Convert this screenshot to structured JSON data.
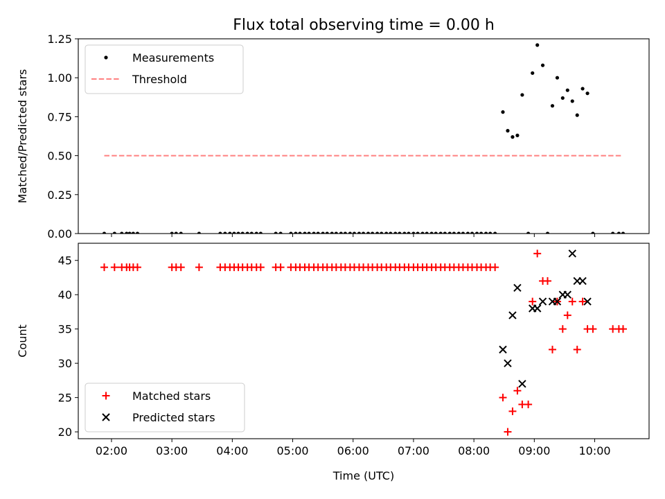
{
  "chart_data": {
    "title": "Flux total observing time = 0.00 h",
    "xlabel": "Time (UTC)",
    "x_tick_labels": [
      "02:00",
      "03:00",
      "04:00",
      "05:00",
      "06:00",
      "07:00",
      "08:00",
      "09:00",
      "10:00"
    ],
    "x_tick_values": [
      2,
      3,
      4,
      5,
      6,
      7,
      8,
      9,
      10
    ],
    "xlim": [
      1.45,
      10.9
    ],
    "panels": [
      {
        "type": "scatter",
        "ylabel": "Matched/Predicted stars",
        "ylim": [
          0,
          1.25
        ],
        "y_ticks": [
          "0.00",
          "0.25",
          "0.50",
          "0.75",
          "1.00",
          "1.25"
        ],
        "y_tick_values": [
          0,
          0.25,
          0.5,
          0.75,
          1.0,
          1.25
        ],
        "legend_position": "upper-left",
        "series": [
          {
            "name": "Measurements",
            "color": "#000000",
            "marker": "dot",
            "points": [
              [
                1.88,
                0
              ],
              [
                2.05,
                0
              ],
              [
                2.17,
                0
              ],
              [
                2.25,
                0
              ],
              [
                2.3,
                0
              ],
              [
                2.36,
                0
              ],
              [
                2.43,
                0
              ],
              [
                3.0,
                0
              ],
              [
                3.07,
                0
              ],
              [
                3.15,
                0
              ],
              [
                3.45,
                0
              ],
              [
                3.8,
                0
              ],
              [
                3.88,
                0
              ],
              [
                3.96,
                0
              ],
              [
                4.03,
                0
              ],
              [
                4.1,
                0
              ],
              [
                4.17,
                0
              ],
              [
                4.25,
                0
              ],
              [
                4.32,
                0
              ],
              [
                4.4,
                0
              ],
              [
                4.47,
                0
              ],
              [
                4.72,
                0
              ],
              [
                4.8,
                0
              ],
              [
                4.97,
                0
              ],
              [
                5.05,
                0
              ],
              [
                5.12,
                0
              ],
              [
                5.2,
                0
              ],
              [
                5.27,
                0
              ],
              [
                5.35,
                0
              ],
              [
                5.42,
                0
              ],
              [
                5.5,
                0
              ],
              [
                5.57,
                0
              ],
              [
                5.65,
                0
              ],
              [
                5.72,
                0
              ],
              [
                5.8,
                0
              ],
              [
                5.87,
                0
              ],
              [
                5.95,
                0
              ],
              [
                6.02,
                0
              ],
              [
                6.1,
                0
              ],
              [
                6.17,
                0
              ],
              [
                6.25,
                0
              ],
              [
                6.32,
                0
              ],
              [
                6.4,
                0
              ],
              [
                6.47,
                0
              ],
              [
                6.55,
                0
              ],
              [
                6.62,
                0
              ],
              [
                6.7,
                0
              ],
              [
                6.77,
                0
              ],
              [
                6.85,
                0
              ],
              [
                6.92,
                0
              ],
              [
                7.0,
                0
              ],
              [
                7.07,
                0
              ],
              [
                7.15,
                0
              ],
              [
                7.22,
                0
              ],
              [
                7.3,
                0
              ],
              [
                7.37,
                0
              ],
              [
                7.45,
                0
              ],
              [
                7.52,
                0
              ],
              [
                7.6,
                0
              ],
              [
                7.67,
                0
              ],
              [
                7.75,
                0
              ],
              [
                7.82,
                0
              ],
              [
                7.9,
                0
              ],
              [
                7.97,
                0
              ],
              [
                8.05,
                0
              ],
              [
                8.12,
                0
              ],
              [
                8.2,
                0
              ],
              [
                8.27,
                0
              ],
              [
                8.35,
                0
              ],
              [
                8.48,
                0.78
              ],
              [
                8.56,
                0.66
              ],
              [
                8.64,
                0.62
              ],
              [
                8.72,
                0.63
              ],
              [
                8.8,
                0.89
              ],
              [
                8.9,
                0
              ],
              [
                8.97,
                1.03
              ],
              [
                9.05,
                1.21
              ],
              [
                9.14,
                1.08
              ],
              [
                9.22,
                0
              ],
              [
                9.3,
                0.82
              ],
              [
                9.38,
                1.0
              ],
              [
                9.47,
                0.87
              ],
              [
                9.55,
                0.92
              ],
              [
                9.63,
                0.85
              ],
              [
                9.71,
                0.76
              ],
              [
                9.8,
                0.93
              ],
              [
                9.88,
                0.9
              ],
              [
                9.97,
                0
              ],
              [
                10.3,
                0
              ],
              [
                10.4,
                0
              ],
              [
                10.47,
                0
              ]
            ]
          },
          {
            "name": "Threshold",
            "color": "#ff8080",
            "line_style": "dashed",
            "points": [
              [
                1.88,
                0.5
              ],
              [
                10.47,
                0.5
              ]
            ]
          }
        ]
      },
      {
        "type": "scatter",
        "ylabel": "Count",
        "ylim": [
          19,
          47.5
        ],
        "y_ticks": [
          "20",
          "25",
          "30",
          "35",
          "40",
          "45"
        ],
        "y_tick_values": [
          20,
          25,
          30,
          35,
          40,
          45
        ],
        "legend_position": "lower-left",
        "series": [
          {
            "name": "Matched stars",
            "color": "#ff0000",
            "marker": "plus",
            "points": [
              [
                1.88,
                44
              ],
              [
                2.05,
                44
              ],
              [
                2.17,
                44
              ],
              [
                2.25,
                44
              ],
              [
                2.3,
                44
              ],
              [
                2.36,
                44
              ],
              [
                2.43,
                44
              ],
              [
                3.0,
                44
              ],
              [
                3.07,
                44
              ],
              [
                3.15,
                44
              ],
              [
                3.45,
                44
              ],
              [
                3.8,
                44
              ],
              [
                3.88,
                44
              ],
              [
                3.96,
                44
              ],
              [
                4.03,
                44
              ],
              [
                4.1,
                44
              ],
              [
                4.17,
                44
              ],
              [
                4.25,
                44
              ],
              [
                4.32,
                44
              ],
              [
                4.4,
                44
              ],
              [
                4.47,
                44
              ],
              [
                4.72,
                44
              ],
              [
                4.8,
                44
              ],
              [
                4.97,
                44
              ],
              [
                5.05,
                44
              ],
              [
                5.12,
                44
              ],
              [
                5.2,
                44
              ],
              [
                5.27,
                44
              ],
              [
                5.35,
                44
              ],
              [
                5.42,
                44
              ],
              [
                5.5,
                44
              ],
              [
                5.57,
                44
              ],
              [
                5.65,
                44
              ],
              [
                5.72,
                44
              ],
              [
                5.8,
                44
              ],
              [
                5.87,
                44
              ],
              [
                5.95,
                44
              ],
              [
                6.02,
                44
              ],
              [
                6.1,
                44
              ],
              [
                6.17,
                44
              ],
              [
                6.25,
                44
              ],
              [
                6.32,
                44
              ],
              [
                6.4,
                44
              ],
              [
                6.47,
                44
              ],
              [
                6.55,
                44
              ],
              [
                6.62,
                44
              ],
              [
                6.7,
                44
              ],
              [
                6.77,
                44
              ],
              [
                6.85,
                44
              ],
              [
                6.92,
                44
              ],
              [
                7.0,
                44
              ],
              [
                7.07,
                44
              ],
              [
                7.15,
                44
              ],
              [
                7.22,
                44
              ],
              [
                7.3,
                44
              ],
              [
                7.37,
                44
              ],
              [
                7.45,
                44
              ],
              [
                7.52,
                44
              ],
              [
                7.6,
                44
              ],
              [
                7.67,
                44
              ],
              [
                7.75,
                44
              ],
              [
                7.82,
                44
              ],
              [
                7.9,
                44
              ],
              [
                7.97,
                44
              ],
              [
                8.05,
                44
              ],
              [
                8.12,
                44
              ],
              [
                8.2,
                44
              ],
              [
                8.27,
                44
              ],
              [
                8.35,
                44
              ],
              [
                8.48,
                25
              ],
              [
                8.56,
                20
              ],
              [
                8.64,
                23
              ],
              [
                8.72,
                26
              ],
              [
                8.8,
                24
              ],
              [
                8.9,
                24
              ],
              [
                8.97,
                39
              ],
              [
                9.05,
                46
              ],
              [
                9.14,
                42
              ],
              [
                9.22,
                42
              ],
              [
                9.3,
                32
              ],
              [
                9.38,
                39
              ],
              [
                9.47,
                35
              ],
              [
                9.55,
                37
              ],
              [
                9.63,
                39
              ],
              [
                9.71,
                32
              ],
              [
                9.8,
                39
              ],
              [
                9.88,
                35
              ],
              [
                9.97,
                35
              ],
              [
                10.3,
                35
              ],
              [
                10.4,
                35
              ],
              [
                10.47,
                35
              ]
            ]
          },
          {
            "name": "Predicted stars",
            "color": "#000000",
            "marker": "x",
            "points": [
              [
                8.48,
                32
              ],
              [
                8.56,
                30
              ],
              [
                8.64,
                37
              ],
              [
                8.72,
                41
              ],
              [
                8.8,
                27
              ],
              [
                8.97,
                38
              ],
              [
                9.05,
                38
              ],
              [
                9.14,
                39
              ],
              [
                9.3,
                39
              ],
              [
                9.38,
                39
              ],
              [
                9.47,
                40
              ],
              [
                9.55,
                40
              ],
              [
                9.63,
                46
              ],
              [
                9.71,
                42
              ],
              [
                9.8,
                42
              ],
              [
                9.88,
                39
              ]
            ]
          }
        ]
      }
    ]
  }
}
